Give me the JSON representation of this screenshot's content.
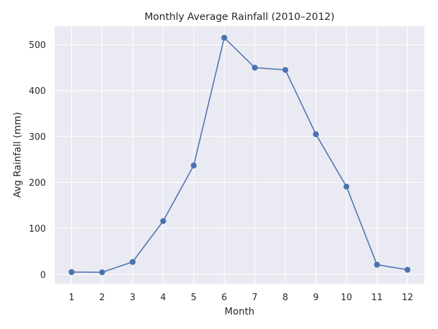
{
  "chart_data": {
    "type": "line",
    "title": "Monthly Average Rainfall (2010–2012)",
    "xlabel": "Month",
    "ylabel": "Avg Rainfall (mm)",
    "x": [
      1,
      2,
      3,
      4,
      5,
      6,
      7,
      8,
      9,
      10,
      11,
      12
    ],
    "series": [
      {
        "values": [
          5,
          4.5,
          27,
          116,
          237,
          515,
          450,
          445,
          305,
          191,
          21,
          10
        ],
        "color": "#4c72b0",
        "marker": "circle"
      }
    ],
    "xticks": [
      "1",
      "2",
      "3",
      "4",
      "5",
      "6",
      "7",
      "8",
      "9",
      "10",
      "11",
      "12"
    ],
    "yticks": [
      "0",
      "100",
      "200",
      "300",
      "400",
      "500"
    ],
    "ytick_values": [
      0,
      100,
      200,
      300,
      400,
      500
    ],
    "xlim": [
      0.45,
      12.55
    ],
    "ylim": [
      -20.5,
      540.5
    ],
    "grid": true,
    "background_color": "#eaeaf2",
    "grid_color": "#ffffff"
  }
}
